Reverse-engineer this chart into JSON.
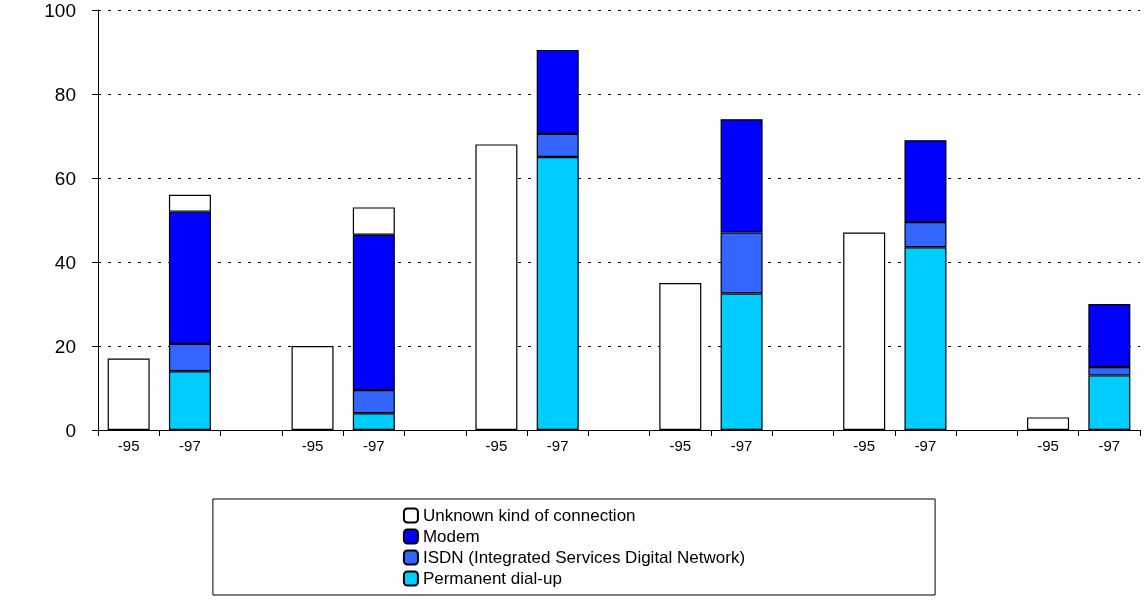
{
  "chart_data": {
    "type": "bar",
    "stacked": true,
    "categories": [
      "-95",
      "-97",
      null,
      "-95",
      "-97",
      null,
      "-95",
      "-97",
      null,
      "-95",
      "-97",
      null,
      "-95",
      "-97",
      null,
      "-95",
      "-97"
    ],
    "series": [
      {
        "name": "Permanent dial-up",
        "color": "#00ccff",
        "values": [
          null,
          14,
          null,
          null,
          4,
          null,
          null,
          65,
          null,
          null,
          32.5,
          null,
          null,
          43.5,
          null,
          null,
          13
        ]
      },
      {
        "name": "ISDN (Integrated Services Digital Network)",
        "color": "#3366ff",
        "values": [
          null,
          6.5,
          null,
          null,
          5.5,
          null,
          null,
          5.5,
          null,
          null,
          14.5,
          null,
          null,
          6,
          null,
          null,
          2
        ]
      },
      {
        "name": "Modem",
        "color": "#0000ff",
        "values": [
          null,
          31.5,
          null,
          null,
          37,
          null,
          null,
          20,
          null,
          null,
          27,
          null,
          null,
          19.5,
          null,
          null,
          15
        ]
      },
      {
        "name": "Unknown kind of connection",
        "color": "#ffffff",
        "values": [
          17,
          4,
          null,
          20,
          6.5,
          null,
          68,
          null,
          null,
          35,
          null,
          null,
          47,
          null,
          null,
          3,
          null
        ]
      }
    ],
    "ylim": [
      0,
      100
    ],
    "yticks": [
      0,
      20,
      40,
      60,
      80,
      100
    ],
    "grid": "y",
    "legend": "bottom"
  }
}
